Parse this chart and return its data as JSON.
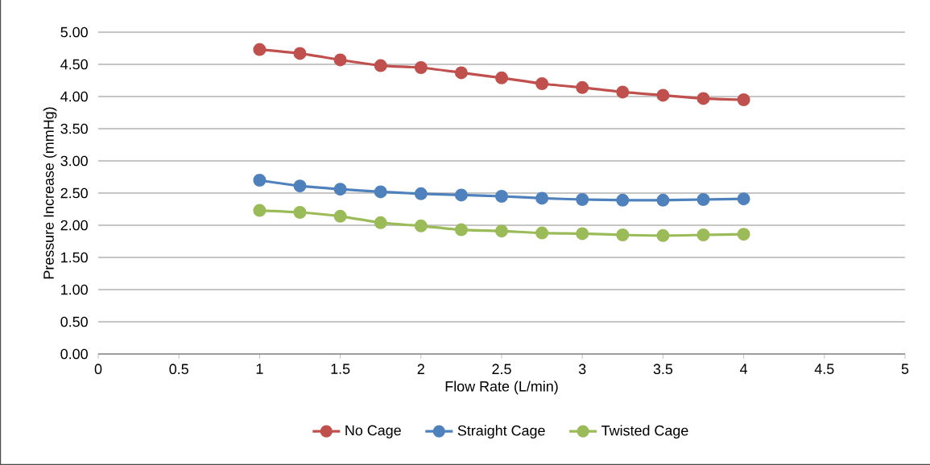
{
  "chart_data": {
    "type": "line",
    "xlabel": "Flow Rate (L/min)",
    "ylabel": "Pressure Increase (mmHg)",
    "x": [
      1,
      1.25,
      1.5,
      1.75,
      2,
      2.25,
      2.5,
      2.75,
      3,
      3.25,
      3.5,
      3.75,
      4
    ],
    "series": [
      {
        "name": "No Cage",
        "color": "#c0504d",
        "values": [
          4.73,
          4.67,
          4.57,
          4.48,
          4.45,
          4.37,
          4.29,
          4.2,
          4.14,
          4.07,
          4.02,
          3.97,
          3.95
        ]
      },
      {
        "name": "Straight Cage",
        "color": "#4f81bd",
        "values": [
          2.7,
          2.61,
          2.56,
          2.52,
          2.49,
          2.47,
          2.45,
          2.42,
          2.4,
          2.39,
          2.39,
          2.4,
          2.41
        ]
      },
      {
        "name": "Twisted Cage",
        "color": "#9bbb59",
        "values": [
          2.23,
          2.2,
          2.14,
          2.04,
          1.99,
          1.93,
          1.91,
          1.88,
          1.87,
          1.85,
          1.84,
          1.85,
          1.86
        ]
      }
    ],
    "xlim": [
      0,
      5
    ],
    "xticks": [
      0,
      0.5,
      1,
      1.5,
      2,
      2.5,
      3,
      3.5,
      4,
      4.5,
      5
    ],
    "ylim": [
      0,
      5
    ],
    "yticks": [
      {
        "value": 0,
        "label": "0.00"
      },
      {
        "value": 0.5,
        "label": "0.50"
      },
      {
        "value": 1,
        "label": "1.00"
      },
      {
        "value": 1.5,
        "label": "1.50"
      },
      {
        "value": 2,
        "label": "2.00"
      },
      {
        "value": 2.5,
        "label": "2.50"
      },
      {
        "value": 3,
        "label": "3.00"
      },
      {
        "value": 3.5,
        "label": "3.50"
      },
      {
        "value": 4,
        "label": "4.00"
      },
      {
        "value": 4.5,
        "label": "4.50"
      },
      {
        "value": 5,
        "label": "5.00"
      }
    ],
    "grid": "y",
    "legend": "bottom",
    "marker": "circle",
    "line_style": "solid"
  }
}
